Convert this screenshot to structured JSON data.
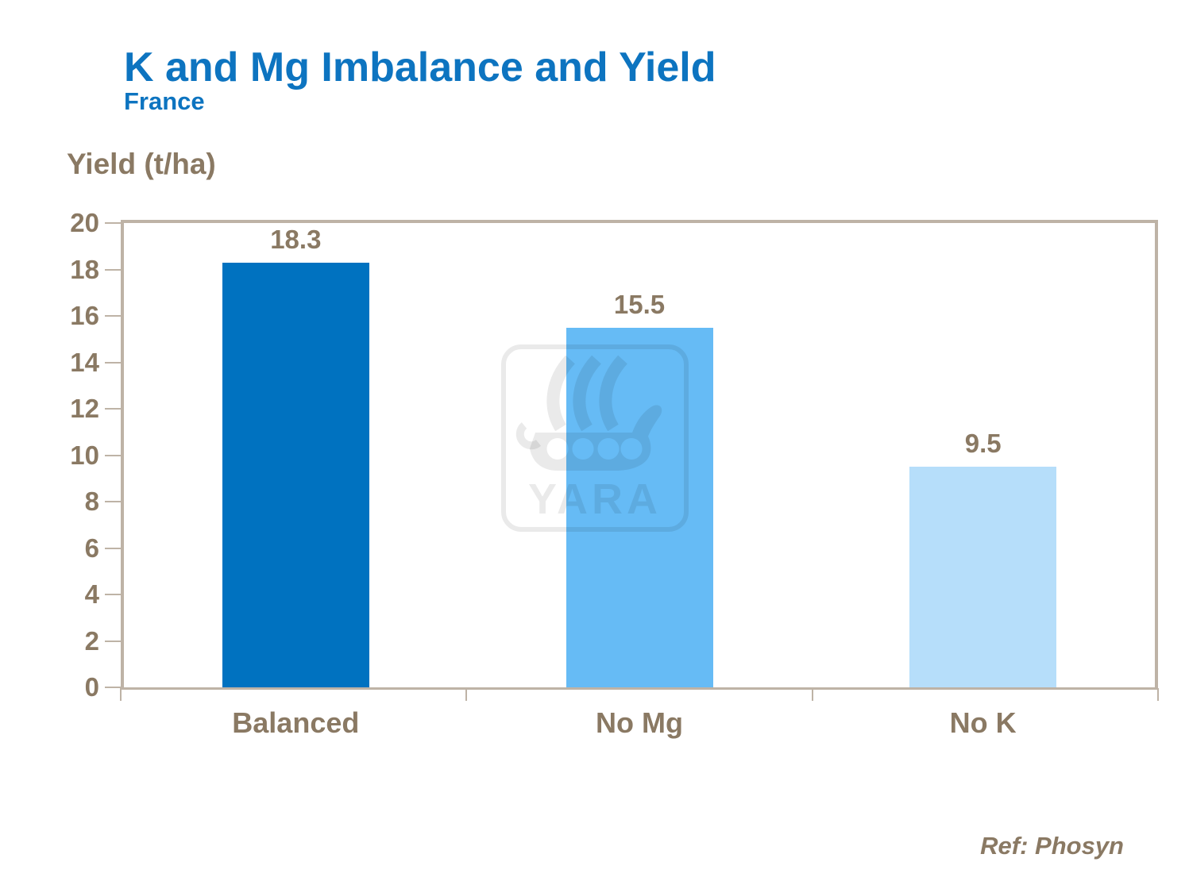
{
  "slide": {
    "title": "K and Mg Imbalance and Yield",
    "subtitle": "France",
    "y_axis_title": "Yield (t/ha)",
    "reference": "Ref: Phosyn"
  },
  "watermark": {
    "label": "YARA"
  },
  "colors": {
    "title_blue": "#0D74C0",
    "text_brown": "#8A7963",
    "axis_tan": "#BEB3A6"
  },
  "chart_data": {
    "type": "bar",
    "title": "K and Mg Imbalance and Yield",
    "subtitle": "France",
    "ylabel": "Yield (t/ha)",
    "xlabel": "",
    "categories": [
      "Balanced",
      "No Mg",
      "No K"
    ],
    "values": [
      18.3,
      15.5,
      9.5
    ],
    "data_labels": [
      "18.3",
      "15.5",
      "9.5"
    ],
    "bar_colors": [
      "#0072C0",
      "#66BBF5",
      "#B6DEFA"
    ],
    "ylim": [
      0,
      20
    ],
    "yticks": [
      0,
      2,
      4,
      6,
      8,
      10,
      12,
      14,
      16,
      18,
      20
    ],
    "grid": false,
    "legend_position": "none",
    "reference": "Ref: Phosyn"
  }
}
